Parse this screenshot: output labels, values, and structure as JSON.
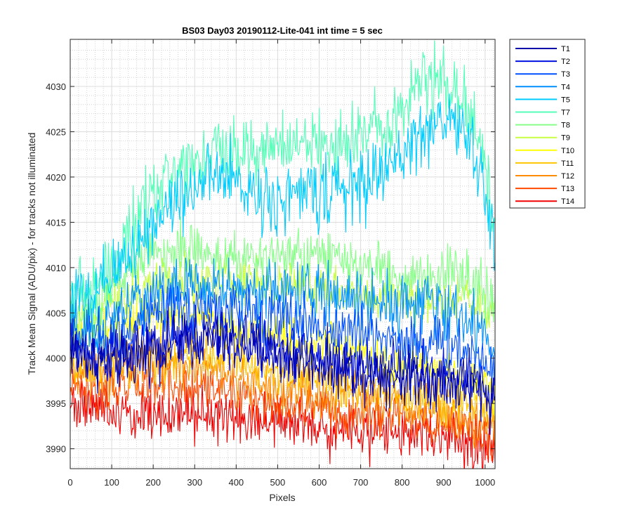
{
  "chart_data": {
    "type": "line",
    "title": "BS03 Day03 20190112-Lite-041 int time = 5 sec",
    "xlabel": "Pixels",
    "ylabel": "Track Mean Signal (ADU/pix) - for tracks not illuminated",
    "xlim": [
      0,
      1024
    ],
    "ylim": [
      3987.8,
      4035.2
    ],
    "xticks": [
      0,
      100,
      200,
      300,
      400,
      500,
      600,
      700,
      800,
      900,
      1000
    ],
    "yticks": [
      3990,
      3995,
      4000,
      4005,
      4010,
      4015,
      4020,
      4025,
      4030
    ],
    "grid": "on (major and minor)",
    "legend_location": "outside-top-right",
    "x_profile": [
      0,
      50,
      100,
      150,
      200,
      250,
      300,
      350,
      400,
      450,
      500,
      550,
      600,
      650,
      700,
      750,
      800,
      850,
      900,
      950,
      1000,
      1024
    ],
    "series": [
      {
        "name": "T1",
        "color": "#0000a8",
        "noise": 1.6,
        "values": [
          4001,
          4000,
          3999.5,
          4000,
          4001,
          4001.5,
          4002,
          4002,
          4001.5,
          4001,
          4000.5,
          4000,
          3999.5,
          3999,
          3998.8,
          3998.5,
          3998,
          3998,
          3997.5,
          3997,
          3996,
          3995.5
        ]
      },
      {
        "name": "T2",
        "color": "#0010e0",
        "noise": 1.6,
        "values": [
          4001.5,
          4000.5,
          4000,
          4000.5,
          4001.5,
          4002,
          4002.5,
          4002.5,
          4002,
          4001.5,
          4001,
          4000.5,
          4000,
          3999.5,
          3999,
          3998.8,
          3998.5,
          3998.3,
          3998,
          3997.5,
          3996.5,
          3996
        ]
      },
      {
        "name": "T3",
        "color": "#0050ff",
        "noise": 1.6,
        "values": [
          4002.5,
          4002,
          4002.5,
          4003.5,
          4004.5,
          4005,
          4005.5,
          4005.5,
          4005,
          4004.8,
          4004.5,
          4004,
          4003.5,
          4003,
          4002.8,
          4002.5,
          4002,
          4001.8,
          4001.5,
          4001,
          4000,
          3999.5
        ]
      },
      {
        "name": "T4",
        "color": "#0090ff",
        "noise": 1.7,
        "values": [
          4003,
          4002.5,
          4004,
          4006,
          4007,
          4007.5,
          4008,
          4008,
          4007.5,
          4007.5,
          4007.5,
          4007.3,
          4007,
          4006.8,
          4006.5,
          4006.5,
          4006,
          4006,
          4005.5,
          4004.5,
          4002.5,
          4001
        ]
      },
      {
        "name": "T5",
        "color": "#00ccff",
        "noise": 1.9,
        "values": [
          4007,
          4006,
          4009,
          4012,
          4015,
          4017.5,
          4019,
          4020,
          4019.5,
          4018,
          4017.5,
          4018,
          4018.5,
          4018.5,
          4019,
          4020.5,
          4022.5,
          4025,
          4026.5,
          4025,
          4019,
          4011
        ]
      },
      {
        "name": "T7",
        "color": "#55ffb8",
        "noise": 1.9,
        "values": [
          4007.5,
          4007,
          4010,
          4014,
          4018,
          4020.5,
          4022,
          4023,
          4023,
          4023.5,
          4023,
          4023.5,
          4023.5,
          4024,
          4024.5,
          4026,
          4028,
          4030.5,
          4031,
          4028.5,
          4022,
          4014.5
        ]
      },
      {
        "name": "T8",
        "color": "#88ff88",
        "noise": 1.5,
        "values": [
          4005,
          4005,
          4007.5,
          4010.5,
          4011.5,
          4012,
          4012,
          4011.5,
          4011,
          4011,
          4011,
          4011,
          4011,
          4010.5,
          4010,
          4009.5,
          4009,
          4009,
          4009.5,
          4009,
          4007,
          4006
        ]
      },
      {
        "name": "T9",
        "color": "#c8ff40",
        "noise": 1.4,
        "values": [
          4004.5,
          4004,
          4006,
          4007.5,
          4008.5,
          4009,
          4009,
          4008.5,
          4008.5,
          4008.5,
          4008,
          4008,
          4008,
          4007.5,
          4007,
          4006.5,
          4006.5,
          4006.5,
          4006.5,
          4006,
          4005.5,
          4005
        ]
      },
      {
        "name": "T10",
        "color": "#ffff00",
        "noise": 1.2,
        "values": [
          4002.5,
          4002,
          4003,
          4004,
          4004.5,
          4004.5,
          4004.5,
          4004,
          4003.5,
          4003,
          4002.5,
          4002,
          4001.5,
          4001,
          4000.5,
          4000,
          3999.5,
          3999,
          3998.5,
          3998,
          3997,
          3996.5
        ]
      },
      {
        "name": "T11",
        "color": "#ffc400",
        "noise": 1.3,
        "values": [
          3999.5,
          3999,
          3999.5,
          4000,
          4000.5,
          4000.5,
          4000.5,
          4000,
          3999.5,
          3999,
          3998.5,
          3998,
          3998,
          3997.5,
          3997,
          3997,
          3996.5,
          3996,
          3995.5,
          3995,
          3994.5,
          3994
        ]
      },
      {
        "name": "T12",
        "color": "#ff8c00",
        "noise": 1.3,
        "values": [
          3998.5,
          3998,
          3998.5,
          3999,
          3999,
          3999,
          3998.8,
          3998.5,
          3998,
          3997.5,
          3997,
          3996.5,
          3996,
          3996,
          3995.5,
          3995.5,
          3995,
          3994.5,
          3994,
          3993.5,
          3993,
          3993
        ]
      },
      {
        "name": "T13",
        "color": "#ff4a00",
        "noise": 1.3,
        "values": [
          3997,
          3996.5,
          3996.5,
          3997,
          3997,
          3997,
          3996.8,
          3996.5,
          3996,
          3995.5,
          3995,
          3994.5,
          3994.5,
          3994,
          3994,
          3993.5,
          3993.5,
          3993,
          3992.5,
          3992,
          3991.5,
          3991
        ]
      },
      {
        "name": "T14",
        "color": "#f00000",
        "noise": 1.5,
        "values": [
          3995.5,
          3994.5,
          3994,
          3994,
          3994,
          3994,
          3994,
          3993.5,
          3993.5,
          3993,
          3993,
          3992.5,
          3992.5,
          3992,
          3992,
          3991.8,
          3991.5,
          3991.5,
          3991,
          3990.5,
          3990,
          3990
        ]
      }
    ]
  }
}
